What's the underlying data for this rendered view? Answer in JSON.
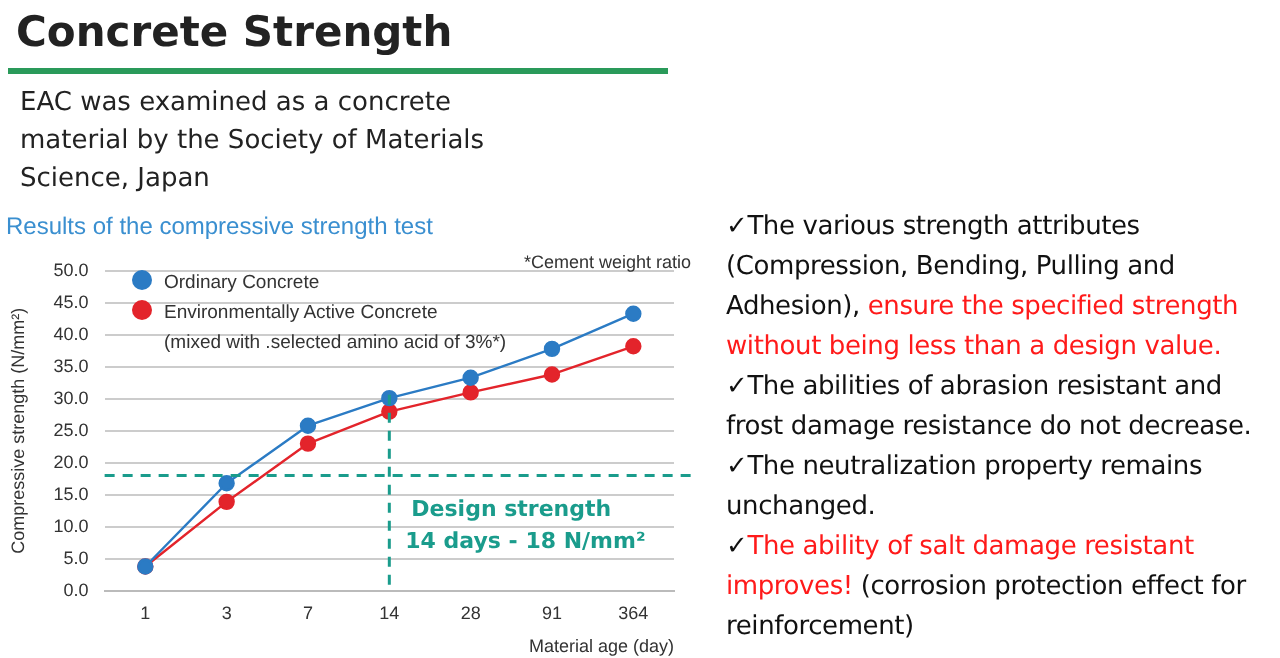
{
  "chart_data": {
    "type": "line",
    "title": "Concrete Strength",
    "subtitle": "EAC was examined as a concrete material by the Society of Materials Science, Japan",
    "xlabel": "Material age (day)",
    "ylabel": "Compressive strength (N/mm²)",
    "categories": [
      "1",
      "3",
      "7",
      "14",
      "28",
      "91",
      "364"
    ],
    "series": [
      {
        "name": "Ordinary Concrete",
        "color": "#2b7bc4",
        "values": [
          3.8,
          16.8,
          25.8,
          30.1,
          33.3,
          37.8,
          43.3
        ]
      },
      {
        "name": "Environmentally Active Concrete",
        "color": "#e3242b",
        "values": [
          3.8,
          13.9,
          23.0,
          28.0,
          31.0,
          33.8,
          38.2
        ]
      }
    ],
    "ylim": [
      0,
      50
    ],
    "yticks": [
      {
        "value": 0,
        "label": "0.0"
      },
      {
        "value": 5,
        "label": "5.0"
      },
      {
        "value": 10,
        "label": "10.0"
      },
      {
        "value": 15,
        "label": "15.0"
      },
      {
        "value": 20,
        "label": "20.0"
      },
      {
        "value": 25,
        "label": "25.0"
      },
      {
        "value": 30,
        "label": "30.0"
      },
      {
        "value": 35,
        "label": "35.0"
      },
      {
        "value": 40,
        "label": "40.0"
      },
      {
        "value": 45,
        "label": "45.0"
      },
      {
        "value": 50,
        "label": "50.0"
      }
    ],
    "grid": "y",
    "legend": "top left",
    "marker": "circle",
    "line_style": "solid",
    "ref_lines": [
      {
        "axis": "y",
        "value": 18,
        "color": "#1a9c8c",
        "line_style": "dashed"
      },
      {
        "axis": "x",
        "value": "14",
        "color": "#1a9c8c",
        "line_style": "dashed"
      }
    ],
    "annotations": [
      {
        "text": "Design strength\n14 days - 18 N/mm²",
        "x": "14",
        "y": 18
      },
      "Results of the compressive strength test",
      "*Cement weight ratio",
      "(mixed with .selected amino acid of 3%*)",
      "✓The various strength attributes (Compression, Bending, Pulling and Adhesion), ",
      "ensure the specified strength without being less than a design value.",
      "✓The abilities of abrasion resistant and frost damage resistance do not decrease.",
      "✓The neutralization property remains unchanged.",
      "✓",
      "The ability of salt damage resistant improves!",
      " (corrosion protection effect for reinforcement)"
    ]
  }
}
